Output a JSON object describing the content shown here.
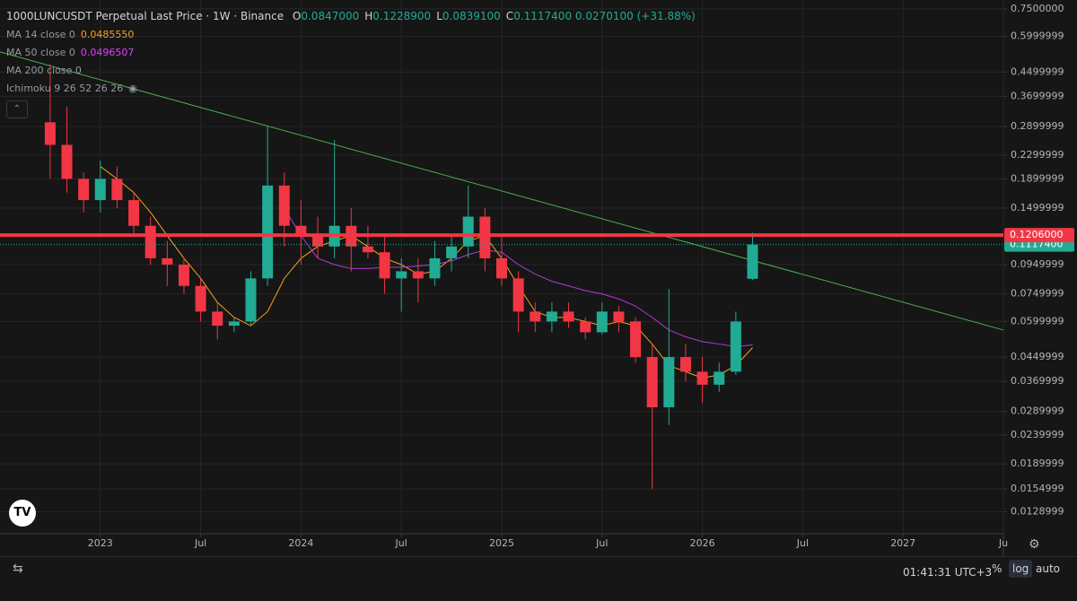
{
  "header": {
    "symbol": "1000LUNCUSDT Perpetual Last Price · 1W · Binance",
    "ohlc": [
      {
        "key": "O",
        "value": "0.0847000"
      },
      {
        "key": "H",
        "value": "0.1228900"
      },
      {
        "key": "L",
        "value": "0.0839100"
      },
      {
        "key": "C",
        "value": "0.1117400"
      }
    ],
    "change": "0.0270100 (+31.88%)",
    "indicators": [
      {
        "name": "MA 14 close 0",
        "value": "0.0485550",
        "color": "#f7a21b"
      },
      {
        "name": "MA 50 close 0",
        "value": "0.0496507",
        "color": "#e040fb"
      },
      {
        "name": "MA 200 close 0",
        "value": null,
        "color": null
      },
      {
        "name": "Ichimoku 9 26 52 26 26",
        "value": null,
        "color": null
      }
    ]
  },
  "footer": {
    "time": "01:41:31 UTC+3",
    "buttons": [
      "%",
      "log",
      "auto"
    ]
  },
  "chart_data": {
    "type": "candlestick",
    "log_scale": true,
    "grid": true,
    "up_color": "#22ab94",
    "down_color": "#f23645",
    "xlim": [
      "2022-07",
      "2027-07"
    ],
    "xticks": [
      {
        "value": "2023-01",
        "label": "2023"
      },
      {
        "value": "2023-07",
        "label": "Jul"
      },
      {
        "value": "2024-01",
        "label": "2024"
      },
      {
        "value": "2024-07",
        "label": "Jul"
      },
      {
        "value": "2025-01",
        "label": "2025"
      },
      {
        "value": "2025-07",
        "label": "Jul"
      },
      {
        "value": "2026-01",
        "label": "2026"
      },
      {
        "value": "2026-07",
        "label": "Jul"
      },
      {
        "value": "2027-01",
        "label": "2027"
      },
      {
        "value": "2027-07",
        "label": "Ju"
      }
    ],
    "ylim": [
      0.0108,
      0.806
    ],
    "yticks": [
      {
        "value": 0.75,
        "label": "0.7500000"
      },
      0.5999999,
      0.4499999,
      0.3699999,
      0.2899999,
      0.2299999,
      0.1899999,
      0.1499999,
      0.0949999,
      0.0749999,
      0.0599999,
      0.0449999,
      0.0369999,
      0.0289999,
      0.0239999,
      0.0189999,
      0.0154999,
      0.0128999
    ],
    "x": [
      "2022-10",
      "2022-11",
      "2022-12",
      "2023-01",
      "2023-02",
      "2023-03",
      "2023-04",
      "2023-05",
      "2023-06",
      "2023-07",
      "2023-08",
      "2023-09",
      "2023-10",
      "2023-11",
      "2023-12",
      "2024-01",
      "2024-02",
      "2024-03",
      "2024-04",
      "2024-05",
      "2024-06",
      "2024-07",
      "2024-08",
      "2024-09",
      "2024-10",
      "2024-11",
      "2024-12",
      "2025-01",
      "2025-02",
      "2025-03",
      "2025-04",
      "2025-05",
      "2025-06",
      "2025-07",
      "2025-08",
      "2025-09",
      "2025-10",
      "2025-11",
      "2025-12",
      "2026-01",
      "2026-02",
      "2026-03",
      "2026-04"
    ],
    "open": [
      0.3,
      0.25,
      0.19,
      0.16,
      0.19,
      0.16,
      0.13,
      0.1,
      0.095,
      0.08,
      0.065,
      0.058,
      0.06,
      0.085,
      0.18,
      0.13,
      0.12,
      0.11,
      0.13,
      0.11,
      0.105,
      0.085,
      0.09,
      0.085,
      0.1,
      0.11,
      0.14,
      0.1,
      0.085,
      0.065,
      0.06,
      0.065,
      0.06,
      0.055,
      0.065,
      0.06,
      0.045,
      0.03,
      0.045,
      0.04,
      0.036,
      0.04,
      0.0847
    ],
    "high": [
      0.48,
      0.34,
      0.2,
      0.22,
      0.21,
      0.17,
      0.14,
      0.115,
      0.1,
      0.085,
      0.07,
      0.062,
      0.09,
      0.29,
      0.2,
      0.16,
      0.14,
      0.26,
      0.15,
      0.13,
      0.12,
      0.1,
      0.1,
      0.115,
      0.12,
      0.18,
      0.15,
      0.12,
      0.09,
      0.07,
      0.07,
      0.07,
      0.062,
      0.07,
      0.068,
      0.062,
      0.05,
      0.078,
      0.05,
      0.045,
      0.043,
      0.065,
      0.12289
    ],
    "low": [
      0.19,
      0.17,
      0.145,
      0.145,
      0.15,
      0.12,
      0.095,
      0.08,
      0.075,
      0.06,
      0.052,
      0.055,
      0.058,
      0.08,
      0.11,
      0.095,
      0.1,
      0.1,
      0.09,
      0.1,
      0.075,
      0.065,
      0.07,
      0.08,
      0.09,
      0.1,
      0.09,
      0.08,
      0.055,
      0.055,
      0.055,
      0.057,
      0.052,
      0.054,
      0.055,
      0.043,
      0.0155,
      0.026,
      0.037,
      0.031,
      0.034,
      0.039,
      0.08391
    ],
    "close": [
      0.25,
      0.19,
      0.16,
      0.19,
      0.16,
      0.13,
      0.1,
      0.095,
      0.08,
      0.065,
      0.058,
      0.06,
      0.085,
      0.18,
      0.13,
      0.12,
      0.11,
      0.13,
      0.11,
      0.105,
      0.085,
      0.09,
      0.085,
      0.1,
      0.11,
      0.14,
      0.1,
      0.085,
      0.065,
      0.06,
      0.065,
      0.06,
      0.055,
      0.065,
      0.06,
      0.045,
      0.03,
      0.045,
      0.04,
      0.036,
      0.04,
      0.06,
      0.11174
    ],
    "lines": [
      {
        "color": "#f7a21b",
        "values": [
          null,
          null,
          null,
          0.21,
          0.19,
          0.17,
          0.145,
          0.12,
          0.1,
          0.085,
          0.07,
          0.062,
          0.058,
          0.065,
          0.085,
          0.1,
          0.11,
          0.115,
          0.12,
          0.11,
          0.1,
          0.095,
          0.088,
          0.09,
          0.1,
          0.115,
          0.12,
          0.1,
          0.08,
          0.065,
          0.062,
          0.062,
          0.06,
          0.058,
          0.06,
          0.058,
          0.05,
          0.042,
          0.04,
          0.038,
          0.039,
          0.042,
          0.048555
        ]
      },
      {
        "color": "#b23ad6",
        "values": [
          null,
          null,
          null,
          null,
          null,
          null,
          null,
          null,
          null,
          null,
          null,
          null,
          null,
          null,
          0.15,
          0.12,
          0.1,
          0.095,
          0.092,
          0.092,
          0.093,
          0.093,
          0.094,
          0.095,
          0.098,
          0.103,
          0.107,
          0.105,
          0.095,
          0.088,
          0.083,
          0.08,
          0.077,
          0.075,
          0.072,
          0.068,
          0.062,
          0.056,
          0.053,
          0.051,
          0.05,
          0.049,
          0.0496507
        ]
      }
    ],
    "trendline": {
      "color": "#4caf50",
      "points": [
        {
          "x": "2022-07",
          "y": 0.53
        },
        {
          "x": "2027-07",
          "y": 0.056
        }
      ]
    },
    "hline": {
      "value": 0.1206,
      "label": "0.1206000",
      "color": "#f23645"
    },
    "last": {
      "value": 0.11174,
      "label": "0.1117400",
      "color": "#22ab94"
    }
  }
}
